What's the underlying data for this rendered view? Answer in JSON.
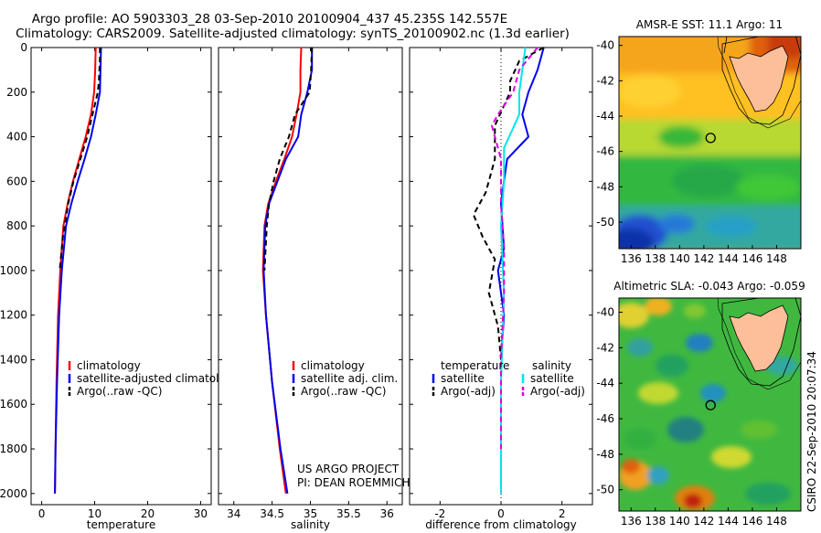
{
  "header": {
    "line1": "Argo profile: AO 5903303_28 03-Sep-2010 20100904_437 45.235S 142.557E",
    "line2": "Climatology: CARS2009. Satellite-adjusted climatology: synTS_20100902.nc (1.3d earlier)"
  },
  "side_label": "CSIRO  22-Sep-2010 20:07:34",
  "colors": {
    "clim": "#ff0000",
    "sat": "#0000ee",
    "argo": "#000000",
    "sal_sat": "#00e5ee",
    "sal_argo": "#dd00dd",
    "land": "#fdbf99"
  },
  "chart_data": [
    {
      "type": "line",
      "id": "temperature",
      "xlabel": "temperature",
      "ylabel": "",
      "xlim": [
        -2,
        32
      ],
      "ylim": [
        0,
        2050
      ],
      "y_reversed": true,
      "xticks": [
        0,
        10,
        20,
        30
      ],
      "yticks": [
        0,
        200,
        400,
        600,
        800,
        1000,
        1200,
        1400,
        1600,
        1800,
        2000
      ],
      "legend": {
        "position": "lower-left",
        "entries": [
          "climatology",
          "satellite-adjusted climatology",
          "Argo(..raw -QC)"
        ]
      },
      "series": [
        {
          "name": "climatology",
          "color": "clim",
          "dash": "",
          "x": [
            10.2,
            10.1,
            9.9,
            9.3,
            8.3,
            7.1,
            5.9,
            4.9,
            4.1,
            3.5,
            3.1,
            2.8,
            2.6,
            2.5
          ],
          "y": [
            0,
            100,
            200,
            300,
            400,
            500,
            600,
            700,
            800,
            1000,
            1200,
            1500,
            1800,
            2000
          ]
        },
        {
          "name": "satellite-adjusted climatology",
          "color": "sat",
          "dash": "",
          "x": [
            11.2,
            11.1,
            11.0,
            10.2,
            9.3,
            8.1,
            6.8,
            5.6,
            4.6,
            3.8,
            3.3,
            2.9,
            2.6,
            2.5
          ],
          "y": [
            0,
            100,
            200,
            300,
            400,
            500,
            600,
            700,
            800,
            1000,
            1200,
            1500,
            1800,
            2000
          ]
        },
        {
          "name": "Argo(..raw -QC)",
          "color": "argo",
          "dash": "6 4",
          "x": [
            11.0,
            11.0,
            10.8,
            10.6,
            9.6,
            8.6,
            7.3,
            6.0,
            5.0,
            4.0,
            3.4
          ],
          "y": [
            0,
            50,
            150,
            200,
            300,
            400,
            500,
            600,
            700,
            850,
            1000
          ]
        }
      ]
    },
    {
      "type": "line",
      "id": "salinity",
      "xlabel": "salinity",
      "ylabel": "",
      "xlim": [
        33.8,
        36.2
      ],
      "ylim": [
        0,
        2050
      ],
      "y_reversed": true,
      "xticks": [
        34,
        34.5,
        35,
        35.5,
        36
      ],
      "legend": {
        "position": "lower-center",
        "entries": [
          "climatology",
          "satellite adj. clim.",
          "Argo(..raw -QC)"
        ]
      },
      "annotations": [
        "US ARGO PROJECT",
        "PI: DEAN ROEMMICH"
      ],
      "series": [
        {
          "name": "climatology",
          "color": "clim",
          "dash": "",
          "x": [
            34.88,
            34.87,
            34.87,
            34.82,
            34.76,
            34.66,
            34.55,
            34.45,
            34.4,
            34.38,
            34.42,
            34.5,
            34.6,
            34.68
          ],
          "y": [
            0,
            100,
            200,
            300,
            400,
            500,
            600,
            700,
            800,
            1000,
            1200,
            1500,
            1800,
            2000
          ]
        },
        {
          "name": "satellite adj. clim.",
          "color": "sat",
          "dash": "",
          "x": [
            35.02,
            35.02,
            34.96,
            34.88,
            34.84,
            34.68,
            34.57,
            34.46,
            34.41,
            34.39,
            34.42,
            34.5,
            34.61,
            34.7
          ],
          "y": [
            0,
            100,
            200,
            300,
            400,
            500,
            600,
            700,
            800,
            1000,
            1200,
            1500,
            1800,
            2000
          ]
        },
        {
          "name": "Argo(..raw -QC)",
          "color": "argo",
          "dash": "6 4",
          "x": [
            35.02,
            35.01,
            34.99,
            34.8,
            34.72,
            34.6,
            34.52,
            34.46,
            34.43,
            34.4
          ],
          "y": [
            0,
            100,
            200,
            300,
            400,
            500,
            600,
            700,
            800,
            1000
          ]
        }
      ]
    },
    {
      "type": "line",
      "id": "difference",
      "xlabel": "difference from climatology",
      "ylabel": "",
      "xlim": [
        -3,
        3
      ],
      "ylim": [
        0,
        2050
      ],
      "y_reversed": true,
      "xticks": [
        -2,
        0,
        2
      ],
      "legend": {
        "position": "lower-center",
        "groups": [
          {
            "title": "temperature",
            "entries": [
              "satellite",
              "Argo(-adj)"
            ]
          },
          {
            "title": "salinity",
            "entries": [
              "satellite",
              "Argo(-adj)"
            ]
          }
        ]
      },
      "series": [
        {
          "name": "temperature satellite",
          "color": "sat",
          "dash": "",
          "x": [
            1.4,
            1.2,
            0.9,
            0.7,
            0.9,
            0.2,
            0.1,
            0.0,
            0.1,
            -0.1,
            0.1,
            0.0
          ],
          "y": [
            0,
            100,
            200,
            300,
            400,
            500,
            600,
            700,
            900,
            1000,
            1200,
            1400
          ]
        },
        {
          "name": "temperature Argo(-adj)",
          "color": "argo",
          "dash": "6 4",
          "x": [
            1.4,
            0.6,
            0.3,
            0.3,
            -0.2,
            -0.2,
            -0.5,
            -0.9,
            -0.6,
            -0.2,
            -0.4,
            -0.1,
            0.0
          ],
          "y": [
            0,
            60,
            150,
            200,
            350,
            500,
            650,
            750,
            850,
            950,
            1100,
            1250,
            1400
          ]
        },
        {
          "name": "salinity satellite",
          "color": "sal_sat",
          "dash": "",
          "x": [
            0.8,
            0.7,
            0.6,
            0.6,
            0.1,
            0.1,
            0.0,
            0.1,
            0.0,
            0.0
          ],
          "y": [
            0,
            100,
            200,
            300,
            450,
            600,
            800,
            1100,
            1500,
            2000
          ]
        },
        {
          "name": "salinity Argo(-adj)",
          "color": "sal_argo",
          "dash": "6 4",
          "x": [
            1.2,
            0.6,
            0.4,
            -0.1,
            -0.3,
            0.0,
            0.0,
            0.1,
            0.1,
            0.0,
            0.0
          ],
          "y": [
            0,
            100,
            200,
            300,
            350,
            500,
            700,
            900,
            1100,
            1400,
            1800
          ]
        }
      ]
    },
    {
      "type": "heatmap",
      "id": "sst-map",
      "title": "AMSR-E SST: 11.1  Argo: 11",
      "xlim": [
        135,
        150
      ],
      "ylim": [
        -51.5,
        -39.5
      ],
      "xticks": [
        136,
        138,
        140,
        142,
        144,
        146,
        148
      ],
      "yticks": [
        -40,
        -42,
        -44,
        -46,
        -48,
        -50
      ],
      "marker": {
        "lon": 142.557,
        "lat": -45.235
      }
    },
    {
      "type": "heatmap",
      "id": "sla-map",
      "title": "Altimetric SLA: -0.043  Argo: -0.059",
      "xlim": [
        135,
        150
      ],
      "ylim": [
        -51.2,
        -39.2
      ],
      "xticks": [
        136,
        138,
        140,
        142,
        144,
        146,
        148
      ],
      "yticks": [
        -40,
        -42,
        -44,
        -46,
        -48,
        -50
      ],
      "marker": {
        "lon": 142.557,
        "lat": -45.235
      }
    }
  ]
}
